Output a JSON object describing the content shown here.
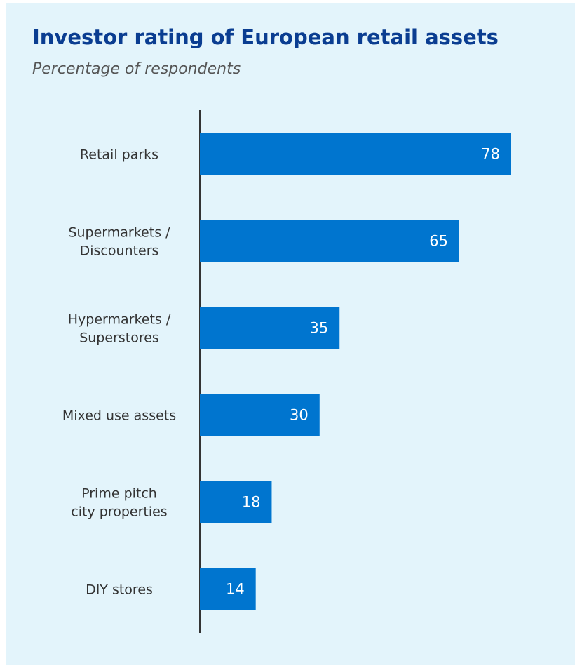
{
  "chart_data": {
    "type": "bar",
    "orientation": "horizontal",
    "title": "Investor rating of European retail assets",
    "subtitle": "Percentage of respondents",
    "categories": [
      [
        "Retail parks"
      ],
      [
        "Supermarkets /",
        "Discounters"
      ],
      [
        "Hypermarkets /",
        "Superstores"
      ],
      [
        "Mixed use assets"
      ],
      [
        "Prime pitch",
        "city properties"
      ],
      [
        "DIY stores"
      ]
    ],
    "values": [
      78,
      65,
      35,
      30,
      18,
      14
    ],
    "xlim": [
      0,
      100
    ],
    "grid": false,
    "bar_color": "#0075cf",
    "title_color": "#0a3d91",
    "background_color": "#e3f4fb"
  }
}
